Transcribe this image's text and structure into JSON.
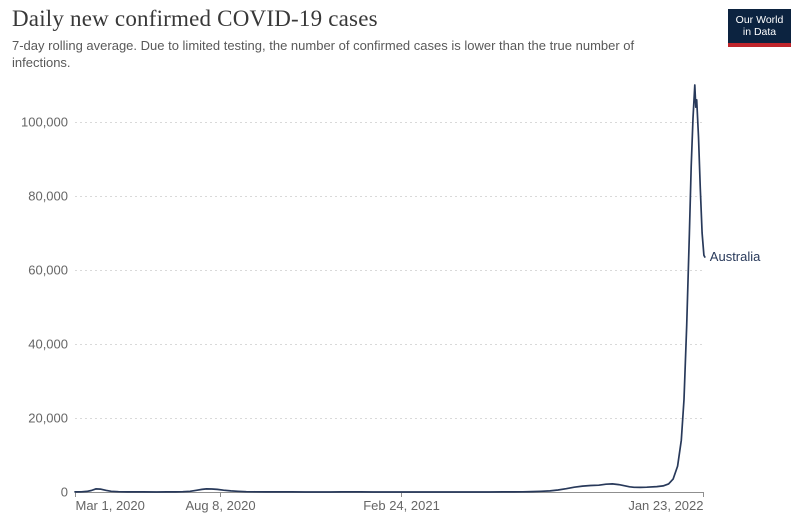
{
  "header": {
    "title": "Daily new confirmed COVID-19 cases",
    "subtitle": "7-day rolling average. Due to limited testing, the number of confirmed cases is lower than the true number of infections.",
    "logo": {
      "line1": "Our World",
      "line2": "in Data",
      "bg_color": "#0c2340",
      "bar_color": "#c0252b"
    }
  },
  "chart_data": {
    "type": "line",
    "title": "Daily new confirmed COVID-19 cases",
    "subtitle": "7-day rolling average",
    "grid": "horizontal-dashed",
    "legend_position": "end-of-line",
    "x_range": [
      "2020-03-01",
      "2022-01-23"
    ],
    "ylim": [
      0,
      110000
    ],
    "y_axis": {
      "max_tick": 100000,
      "ticks": [
        0,
        20000,
        40000,
        60000,
        80000,
        100000
      ],
      "tick_labels": [
        "0",
        "20,000",
        "40,000",
        "60,000",
        "80,000",
        "100,000"
      ]
    },
    "x_ticks": [
      {
        "label": "Mar 1, 2020",
        "date": "2020-03-01"
      },
      {
        "label": "Aug 8, 2020",
        "date": "2020-08-08"
      },
      {
        "label": "Feb 24, 2021",
        "date": "2021-02-24"
      },
      {
        "label": "Jan 23, 2022",
        "date": "2022-01-23"
      }
    ],
    "colors": {
      "line": "#28395a",
      "grid": "#d9d9d9",
      "axis": "#8f8f8f",
      "tick_text": "#666666"
    },
    "series": [
      {
        "name": "Australia",
        "color": "#28395a",
        "points": [
          [
            "2020-03-01",
            20
          ],
          [
            "2020-03-08",
            60
          ],
          [
            "2020-03-14",
            150
          ],
          [
            "2020-03-19",
            400
          ],
          [
            "2020-03-24",
            850
          ],
          [
            "2020-03-29",
            780
          ],
          [
            "2020-04-04",
            450
          ],
          [
            "2020-04-10",
            200
          ],
          [
            "2020-04-18",
            80
          ],
          [
            "2020-04-28",
            30
          ],
          [
            "2020-05-15",
            15
          ],
          [
            "2020-05-30",
            12
          ],
          [
            "2020-06-10",
            15
          ],
          [
            "2020-06-20",
            30
          ],
          [
            "2020-06-28",
            90
          ],
          [
            "2020-07-06",
            200
          ],
          [
            "2020-07-13",
            450
          ],
          [
            "2020-07-19",
            700
          ],
          [
            "2020-07-24",
            850
          ],
          [
            "2020-07-30",
            820
          ],
          [
            "2020-08-05",
            700
          ],
          [
            "2020-08-12",
            480
          ],
          [
            "2020-08-20",
            300
          ],
          [
            "2020-08-28",
            180
          ],
          [
            "2020-09-06",
            90
          ],
          [
            "2020-09-16",
            50
          ],
          [
            "2020-09-28",
            25
          ],
          [
            "2020-10-12",
            18
          ],
          [
            "2020-10-26",
            15
          ],
          [
            "2020-11-10",
            8
          ],
          [
            "2020-11-24",
            8
          ],
          [
            "2020-12-08",
            10
          ],
          [
            "2020-12-20",
            25
          ],
          [
            "2020-12-31",
            30
          ],
          [
            "2021-01-10",
            25
          ],
          [
            "2021-01-24",
            12
          ],
          [
            "2021-02-07",
            8
          ],
          [
            "2021-02-24",
            6
          ],
          [
            "2021-03-15",
            8
          ],
          [
            "2021-04-05",
            10
          ],
          [
            "2021-04-26",
            12
          ],
          [
            "2021-05-17",
            10
          ],
          [
            "2021-06-01",
            8
          ],
          [
            "2021-06-16",
            15
          ],
          [
            "2021-06-28",
            25
          ],
          [
            "2021-07-08",
            45
          ],
          [
            "2021-07-18",
            95
          ],
          [
            "2021-07-28",
            180
          ],
          [
            "2021-08-07",
            300
          ],
          [
            "2021-08-16",
            550
          ],
          [
            "2021-08-25",
            900
          ],
          [
            "2021-09-03",
            1300
          ],
          [
            "2021-09-12",
            1600
          ],
          [
            "2021-09-21",
            1750
          ],
          [
            "2021-09-30",
            1850
          ],
          [
            "2021-10-08",
            2100
          ],
          [
            "2021-10-15",
            2200
          ],
          [
            "2021-10-22",
            2000
          ],
          [
            "2021-10-28",
            1700
          ],
          [
            "2021-11-03",
            1400
          ],
          [
            "2021-11-08",
            1270
          ],
          [
            "2021-11-15",
            1250
          ],
          [
            "2021-11-22",
            1300
          ],
          [
            "2021-12-03",
            1450
          ],
          [
            "2021-12-10",
            1650
          ],
          [
            "2021-12-16",
            2200
          ],
          [
            "2021-12-21",
            3500
          ],
          [
            "2021-12-26",
            7000
          ],
          [
            "2021-12-30",
            14000
          ],
          [
            "2022-01-02",
            25000
          ],
          [
            "2022-01-05",
            45000
          ],
          [
            "2022-01-08",
            70000
          ],
          [
            "2022-01-10",
            88000
          ],
          [
            "2022-01-12",
            101000
          ],
          [
            "2022-01-14",
            110000
          ],
          [
            "2022-01-15",
            104000
          ],
          [
            "2022-01-16",
            106000
          ],
          [
            "2022-01-18",
            96000
          ],
          [
            "2022-01-20",
            82000
          ],
          [
            "2022-01-22",
            70000
          ],
          [
            "2022-01-24",
            64000
          ],
          [
            "2022-01-25",
            63500
          ]
        ]
      }
    ]
  }
}
